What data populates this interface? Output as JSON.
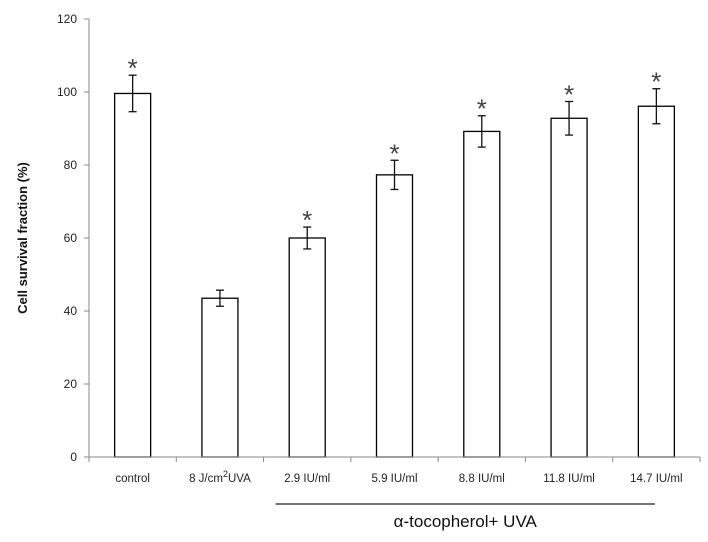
{
  "chart_data": {
    "type": "bar",
    "title": "",
    "xlabel": "",
    "ylabel": "Cell survival fraction (%)",
    "ylim": [
      0,
      120
    ],
    "yticks": [
      0,
      20,
      40,
      60,
      80,
      100,
      120
    ],
    "grid": false,
    "legend": "none",
    "categories": [
      {
        "prefix": "control",
        "sup": "",
        "suffix": ""
      },
      {
        "prefix": "8 J/cm",
        "sup": "2",
        "suffix": "UVA"
      },
      {
        "prefix": "2.9 IU/ml",
        "sup": "",
        "suffix": ""
      },
      {
        "prefix": "5.9 IU/ml",
        "sup": "",
        "suffix": ""
      },
      {
        "prefix": "8.8 IU/ml",
        "sup": "",
        "suffix": ""
      },
      {
        "prefix": "11.8 IU/ml",
        "sup": "",
        "suffix": ""
      },
      {
        "prefix": "14.7 IU/ml",
        "sup": "",
        "suffix": ""
      }
    ],
    "values": [
      99.6,
      43.5,
      60.0,
      77.3,
      89.2,
      92.8,
      96.1
    ],
    "errors": [
      5.0,
      2.2,
      3.0,
      4.0,
      4.3,
      4.6,
      4.8
    ],
    "significant": [
      true,
      false,
      true,
      true,
      true,
      true,
      true
    ],
    "significance_marker": "*",
    "group_annotation": {
      "label": "α-tocopherol+ UVA",
      "from_category": 2,
      "to_category": 6
    },
    "colors": {
      "bar_fill": "#ffffff",
      "bar_stroke": "#000000",
      "axis": "#888888"
    }
  }
}
